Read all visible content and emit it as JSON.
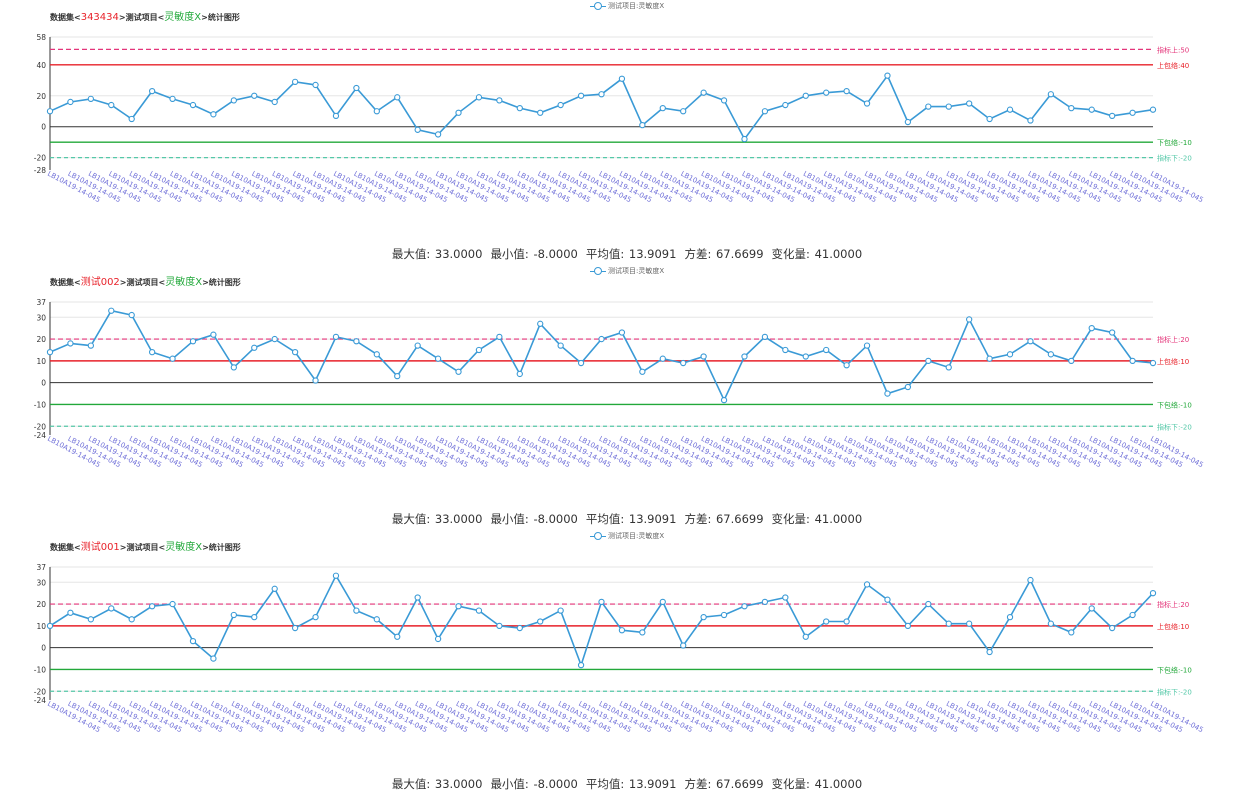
{
  "legend_label": "测试项目:灵敏度X",
  "x_label": "LB10A19-14-045",
  "colors": {
    "line": "#3a9ad6",
    "upper": "#e8222a",
    "lower": "#22a83a",
    "idx_upper": "#e4357a",
    "idx_lower": "#55c8a8",
    "xtick": "#6f6fd8"
  },
  "chart_data": [
    {
      "type": "line",
      "title_prefix": "数据集<",
      "dataset": "343434",
      "title_mid": ">测试项目<",
      "item": "灵敏度X",
      "title_suffix": ">统计图形",
      "ylim": [
        -28,
        58
      ],
      "yticks": [
        58,
        40,
        20,
        0,
        -20,
        -28
      ],
      "ref_lines": [
        {
          "kind": "idx_upper",
          "value": 50,
          "label": "指标上:50",
          "dash": true
        },
        {
          "kind": "upper",
          "value": 40,
          "label": "上包络:40",
          "dash": false
        },
        {
          "kind": "lower",
          "value": -10,
          "label": "下包络:-10",
          "dash": false
        },
        {
          "kind": "idx_lower",
          "value": -20,
          "label": "指标下:-20",
          "dash": true
        }
      ],
      "values": [
        10,
        16,
        18,
        14,
        5,
        23,
        18,
        14,
        8,
        17,
        20,
        16,
        29,
        27,
        7,
        25,
        10,
        19,
        -2,
        -5,
        9,
        19,
        17,
        12,
        9,
        14,
        20,
        21,
        31,
        1,
        12,
        10,
        22,
        17,
        -8,
        10,
        14,
        20,
        22,
        23,
        15,
        33,
        3,
        13,
        13,
        15,
        5,
        11,
        4,
        21,
        12,
        11,
        7,
        9,
        11
      ],
      "stats": {
        "max": "最大值: 33.0000",
        "min": "最小值: -8.0000",
        "avg": "平均值: 13.9091",
        "var": "方差: 67.6699",
        "range": "变化量: 41.0000"
      }
    },
    {
      "type": "line",
      "title_prefix": "数据集<",
      "dataset": "测试002",
      "title_mid": ">测试项目<",
      "item": "灵敏度X",
      "title_suffix": ">统计图形",
      "ylim": [
        -24,
        37
      ],
      "yticks": [
        37,
        30,
        20,
        10,
        0,
        -10,
        -20,
        -24
      ],
      "ref_lines": [
        {
          "kind": "idx_upper",
          "value": 20,
          "label": "指标上:20",
          "dash": true
        },
        {
          "kind": "upper",
          "value": 10,
          "label": "上包络:10",
          "dash": false
        },
        {
          "kind": "lower",
          "value": -10,
          "label": "下包络:-10",
          "dash": false
        },
        {
          "kind": "idx_lower",
          "value": -20,
          "label": "指标下:-20",
          "dash": true
        }
      ],
      "values": [
        14,
        18,
        17,
        33,
        31,
        14,
        11,
        19,
        22,
        7,
        16,
        20,
        14,
        1,
        21,
        19,
        13,
        3,
        17,
        11,
        5,
        15,
        21,
        4,
        27,
        17,
        9,
        20,
        23,
        5,
        11,
        9,
        12,
        -8,
        12,
        21,
        15,
        12,
        15,
        8,
        17,
        -5,
        -2,
        10,
        7,
        29,
        11,
        13,
        19,
        13,
        10,
        25,
        23,
        10,
        9
      ],
      "stats": {
        "max": "最大值: 33.0000",
        "min": "最小值: -8.0000",
        "avg": "平均值: 13.9091",
        "var": "方差: 67.6699",
        "range": "变化量: 41.0000"
      }
    },
    {
      "type": "line",
      "title_prefix": "数据集<",
      "dataset": "测试001",
      "title_mid": ">测试项目<",
      "item": "灵敏度X",
      "title_suffix": ">统计图形",
      "ylim": [
        -24,
        37
      ],
      "yticks": [
        37,
        30,
        20,
        10,
        0,
        -10,
        -20,
        -24
      ],
      "ref_lines": [
        {
          "kind": "idx_upper",
          "value": 20,
          "label": "指标上:20",
          "dash": true
        },
        {
          "kind": "upper",
          "value": 10,
          "label": "上包络:10",
          "dash": false
        },
        {
          "kind": "lower",
          "value": -10,
          "label": "下包络:-10",
          "dash": false
        },
        {
          "kind": "idx_lower",
          "value": -20,
          "label": "指标下:-20",
          "dash": true
        }
      ],
      "values": [
        10,
        16,
        13,
        18,
        13,
        19,
        20,
        3,
        -5,
        15,
        14,
        27,
        9,
        14,
        33,
        17,
        13,
        5,
        23,
        4,
        19,
        17,
        10,
        9,
        12,
        17,
        -8,
        21,
        8,
        7,
        21,
        1,
        14,
        15,
        19,
        21,
        23,
        5,
        12,
        12,
        29,
        22,
        10,
        20,
        11,
        11,
        -2,
        14,
        31,
        11,
        7,
        18,
        9,
        15,
        25
      ],
      "stats": {
        "max": "最大值: 33.0000",
        "min": "最小值: -8.0000",
        "avg": "平均值: 13.9091",
        "var": "方差: 67.6699",
        "range": "变化量: 41.0000"
      }
    }
  ]
}
